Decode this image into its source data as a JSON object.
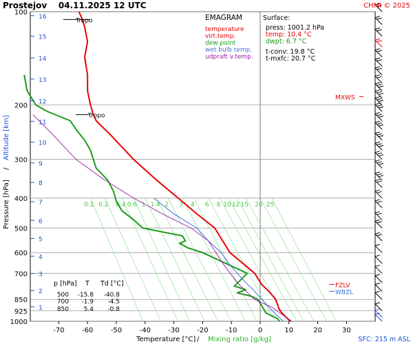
{
  "header": {
    "title": "Prostejov    04.11.2025 12 UTC",
    "copyright": "CHMI © 2025"
  },
  "chart_data": {
    "type": "line",
    "title": "EMAGRAM",
    "xlabel_temp": "Temperature [°C]",
    "xlabel_sep": "/",
    "xlabel_mix": "Mixing ratio [g/kg]",
    "ylabel_pressure": "Pressure [hPa]",
    "ylabel_sep": "/",
    "ylabel_altitude": "Altitude [km]",
    "xlim": [
      -80,
      40
    ],
    "ylim": [
      1000,
      100
    ],
    "y_scale": "log",
    "x_ticks": [
      -70,
      -60,
      -50,
      -40,
      -30,
      -20,
      -10,
      0,
      10,
      20,
      30
    ],
    "p_levels": [
      100,
      200,
      300,
      400,
      500,
      600,
      700,
      850,
      925,
      1000
    ],
    "altitude_ticks": [
      {
        "km": "1",
        "p": 898
      },
      {
        "km": "2",
        "p": 795
      },
      {
        "km": "3",
        "p": 701
      },
      {
        "km": "4",
        "p": 616
      },
      {
        "km": "5",
        "p": 540
      },
      {
        "km": "6",
        "p": 472
      },
      {
        "km": "7",
        "p": 411
      },
      {
        "km": "8",
        "p": 356
      },
      {
        "km": "9",
        "p": 308
      },
      {
        "km": "10",
        "p": 264
      },
      {
        "km": "11",
        "p": 226
      },
      {
        "km": "12",
        "p": 194
      },
      {
        "km": "13",
        "p": 165
      },
      {
        "km": "14",
        "p": 141
      },
      {
        "km": "15",
        "p": 120
      },
      {
        "km": "16",
        "p": 103
      }
    ],
    "mixing_ratio_labels": [
      "0.1",
      "0.2",
      "0.4",
      "0.6",
      "1",
      "1.4",
      "2",
      "3",
      "4",
      "6",
      "8",
      "10",
      "12",
      "15",
      "20",
      "25"
    ],
    "mixing_ratio_lines": [
      {
        "label": "0.1",
        "T850": -44,
        "T400": -59
      },
      {
        "label": "0.2",
        "T850": -38,
        "T400": -54
      },
      {
        "label": "0.4",
        "T850": -32,
        "T400": -48
      },
      {
        "label": "0.6",
        "T850": -28,
        "T400": -44
      },
      {
        "label": "1",
        "T850": -23,
        "T400": -40
      },
      {
        "label": "1.4",
        "T850": -18.5,
        "T400": -36
      },
      {
        "label": "2",
        "T850": -14,
        "T400": -32
      },
      {
        "label": "3",
        "T850": -9,
        "T400": -27
      },
      {
        "label": "4",
        "T850": -5,
        "T400": -23
      },
      {
        "label": "6",
        "T850": 1,
        "T400": -18
      },
      {
        "label": "8",
        "T850": 5,
        "T400": -14
      },
      {
        "label": "10",
        "T850": 8.5,
        "T400": -11
      },
      {
        "label": "12",
        "T850": 11,
        "T400": -8
      },
      {
        "label": "15",
        "T850": 14.5,
        "T400": -5
      },
      {
        "label": "20",
        "T850": 19,
        "T400": 0
      },
      {
        "label": "25",
        "T850": 22.5,
        "T400": 4
      }
    ],
    "legend": [
      {
        "name": "temperature",
        "color": "#e60000"
      },
      {
        "name": "virt.temp.",
        "color": "#e60000"
      },
      {
        "name": "dew point",
        "color": "#1a9a1a"
      },
      {
        "name": "wet bulb temp.",
        "color": "#3c6ed8"
      },
      {
        "name": "udpraft v.temp.",
        "color": "#9a1aa0"
      }
    ],
    "series": [
      {
        "name": "temperature",
        "color": "#e60000",
        "points": [
          [
            10.4,
            1000
          ],
          [
            9,
            970
          ],
          [
            7.5,
            940
          ],
          [
            6.5,
            910
          ],
          [
            5.4,
            850
          ],
          [
            3,
            800
          ],
          [
            0.5,
            760
          ],
          [
            -1.9,
            700
          ],
          [
            -6,
            650
          ],
          [
            -10.5,
            600
          ],
          [
            -15.8,
            500
          ],
          [
            -22,
            450
          ],
          [
            -28.5,
            400
          ],
          [
            -36,
            350
          ],
          [
            -44,
            300
          ],
          [
            -52,
            250
          ],
          [
            -57,
            225
          ],
          [
            -58,
            215
          ],
          [
            -59,
            200
          ],
          [
            -60,
            180
          ],
          [
            -60,
            160
          ],
          [
            -61,
            140
          ],
          [
            -60,
            125
          ],
          [
            -61,
            112
          ],
          [
            -62,
            105
          ],
          [
            -63,
            100
          ]
        ]
      },
      {
        "name": "dew point",
        "color": "#1a9a1a",
        "points": [
          [
            6.7,
            1000
          ],
          [
            6,
            980
          ],
          [
            4,
            960
          ],
          [
            2,
            940
          ],
          [
            -0.8,
            850
          ],
          [
            -3,
            830
          ],
          [
            -8,
            810
          ],
          [
            -5,
            790
          ],
          [
            -9,
            770
          ],
          [
            -4.5,
            700
          ],
          [
            -20,
            600
          ],
          [
            -25,
            580
          ],
          [
            -28,
            560
          ],
          [
            -26,
            550
          ],
          [
            -27,
            530
          ],
          [
            -40.8,
            500
          ],
          [
            -44,
            470
          ],
          [
            -48,
            440
          ],
          [
            -50,
            410
          ],
          [
            -51,
            380
          ],
          [
            -53,
            350
          ],
          [
            -57,
            320
          ],
          [
            -58,
            300
          ],
          [
            -59,
            280
          ],
          [
            -61,
            260
          ],
          [
            -64,
            240
          ],
          [
            -66,
            225
          ],
          [
            -74,
            210
          ],
          [
            -78,
            200
          ],
          [
            -81,
            180
          ],
          [
            -82,
            160
          ]
        ]
      },
      {
        "name": "wet bulb temp.",
        "color": "#3c6ed8",
        "points": [
          [
            8,
            1000
          ],
          [
            6,
            960
          ],
          [
            3,
            900
          ],
          [
            0.6,
            850
          ],
          [
            -2.5,
            790
          ],
          [
            -5,
            750
          ],
          [
            -8,
            700
          ],
          [
            -11,
            650
          ],
          [
            -13.5,
            600
          ],
          [
            -18,
            550
          ],
          [
            -22,
            500
          ],
          [
            -30,
            450
          ],
          [
            -37,
            400
          ]
        ]
      },
      {
        "name": "udpraft v.temp.",
        "color": "#9a1aa0",
        "points": [
          [
            11,
            1000
          ],
          [
            4,
            900
          ],
          [
            -2,
            850
          ],
          [
            -8,
            750
          ],
          [
            -13,
            650
          ],
          [
            -18,
            550
          ],
          [
            -24,
            500
          ],
          [
            -34,
            450
          ],
          [
            -44,
            400
          ],
          [
            -54,
            350
          ],
          [
            -64,
            300
          ],
          [
            -72,
            250
          ],
          [
            -79,
            215
          ]
        ]
      }
    ],
    "tropopause": [
      {
        "label": "Tropo",
        "p": 106
      },
      {
        "label": "Tropo",
        "p": 215
      }
    ],
    "surface": {
      "heading": "Surface:",
      "press": "press: 1001.2 hPa",
      "temp": "temp: 10.4 °C",
      "dwpt": "dwpt: 6.7 °C",
      "tconv": "t-conv: 19.8 °C",
      "tmxfc": "t-mxfc: 20.7 °C"
    },
    "table": {
      "headers": [
        "p [hPa]",
        "T",
        "Td [°C]"
      ],
      "rows": [
        [
          "500",
          "-15.8",
          "-40.8"
        ],
        [
          "700",
          "-1.9",
          "-4.5"
        ],
        [
          "850",
          "5.4",
          "-0.8"
        ]
      ]
    },
    "markers": [
      {
        "label": "MXWS",
        "p": 188,
        "color": "#e60000"
      },
      {
        "label": "FZLV",
        "p": 760,
        "color": "#e60000"
      },
      {
        "label": "WBZL",
        "p": 800,
        "color": "#3c6ed8"
      }
    ],
    "footer": "SFC: 215 m ASL",
    "wind_barb_levels": [
      1000,
      970,
      925,
      850,
      800,
      750,
      700,
      650,
      600,
      550,
      500,
      470,
      430,
      400,
      370,
      350,
      320,
      300,
      280,
      260,
      240,
      225,
      210,
      200,
      190,
      180,
      170,
      160,
      150,
      140,
      130,
      120,
      110,
      100
    ]
  }
}
